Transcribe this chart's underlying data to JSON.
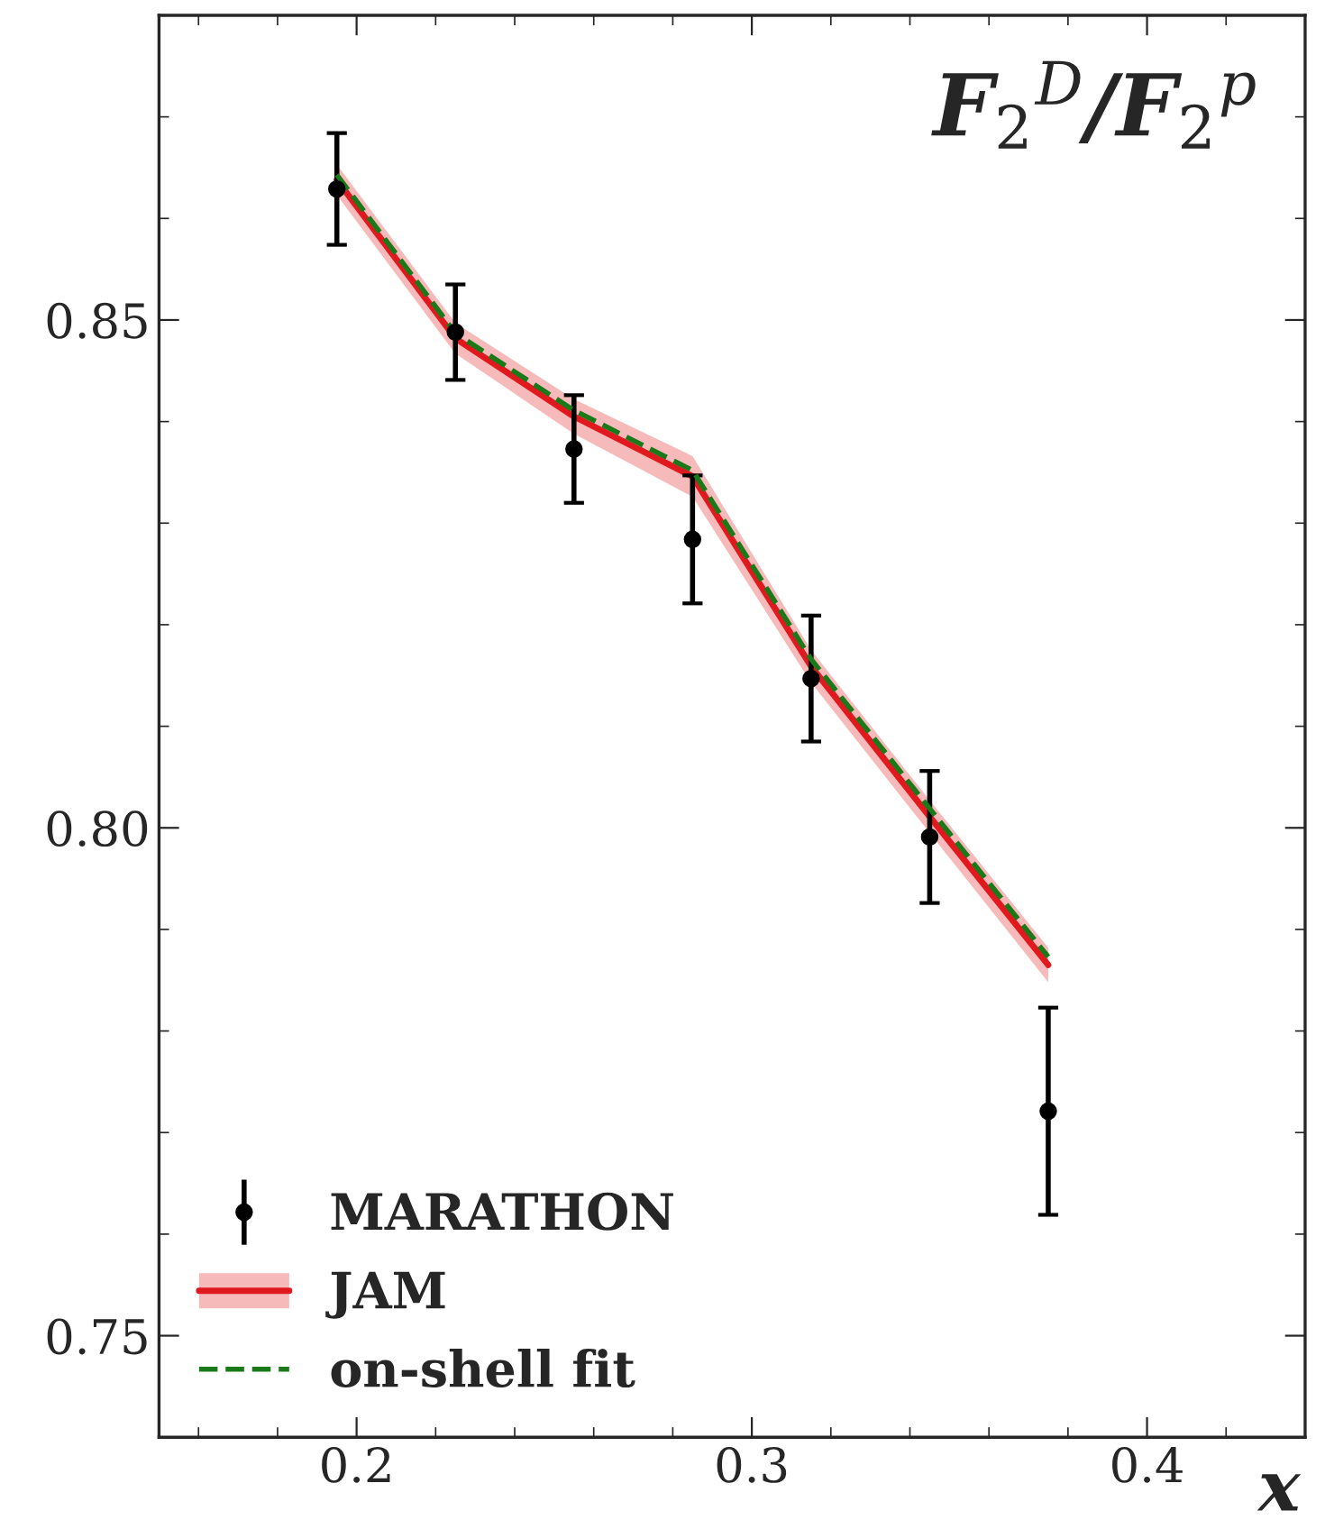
{
  "chart_data": {
    "type": "scatter",
    "annotations": [
      "F$_{2}$$^{D}$/F$_{2}$$^{p}$"
    ],
    "xlabel": "x",
    "x": [
      0.195,
      0.225,
      0.255,
      0.285,
      0.315,
      0.345,
      0.375
    ],
    "series": [
      {
        "name": "MARATHON",
        "color": "#000000",
        "marker": "circle",
        "values": [
          0.8629,
          0.8488,
          0.8373,
          0.8284,
          0.8147,
          0.7991,
          0.7721
        ],
        "errors": [
          0.0055,
          0.0047,
          0.0053,
          0.0063,
          0.0062,
          0.0065,
          0.0102
        ]
      },
      {
        "name": "JAM",
        "type": "line",
        "color": "#e0191e",
        "line_style": "solid",
        "values": [
          0.8638,
          0.8482,
          0.8405,
          0.8346,
          0.8159,
          0.8011,
          0.7865
        ],
        "lower": [
          0.8623,
          0.8467,
          0.8388,
          0.8326,
          0.8143,
          0.7995,
          0.7848
        ],
        "upper": [
          0.8653,
          0.8497,
          0.8422,
          0.8366,
          0.8175,
          0.8027,
          0.7882
        ]
      },
      {
        "name": "on-shell fit",
        "type": "line",
        "color": "#1a7a1a",
        "line_style": "dashed",
        "values": [
          0.8643,
          0.8487,
          0.8411,
          0.8352,
          0.8166,
          0.8019,
          0.7873
        ]
      }
    ],
    "xlim": [
      0.15,
      0.44
    ],
    "ylim": [
      0.74,
      0.88
    ],
    "xticks": [
      0.2,
      0.3,
      0.4
    ],
    "yticks": [
      {
        "value": 0.75,
        "label": "0.75"
      },
      {
        "value": 0.8,
        "label": "0.80"
      },
      {
        "value": 0.85,
        "label": "0.85"
      }
    ],
    "grid": false,
    "legend": "bottom left"
  }
}
